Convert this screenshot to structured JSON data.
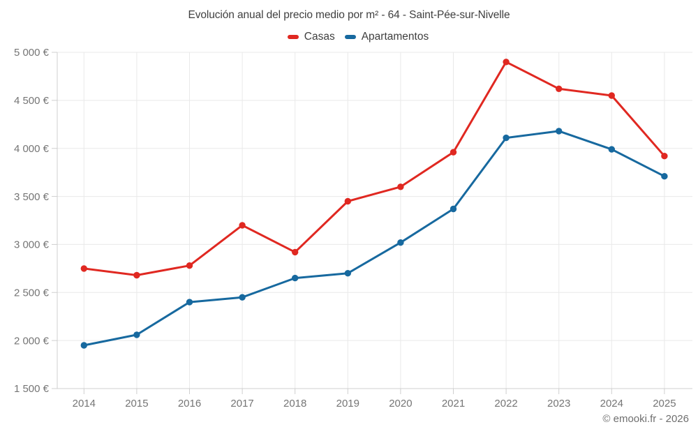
{
  "title": "Evolución anual del precio medio por m² - 64 - Saint-Pée-sur-Nivelle",
  "legend": {
    "items": [
      {
        "label": "Casas",
        "color": "#e02821"
      },
      {
        "label": "Apartamentos",
        "color": "#17699f"
      }
    ]
  },
  "footer": {
    "credit": "© emooki.fr - 2026"
  },
  "colors": {
    "grid": "#e9e9e9",
    "axis": "#cfcfcf",
    "axis_label": "#757575",
    "heading_text": "#3f3f3f",
    "footer_text": "#6f6f6f",
    "casas": "#e02821",
    "apartamentos": "#17699f"
  },
  "chart_data": {
    "type": "line",
    "title": "Evolución anual del precio medio por m² - 64 - Saint-Pée-sur-Nivelle",
    "categories": [
      "2014",
      "2015",
      "2016",
      "2017",
      "2018",
      "2019",
      "2020",
      "2021",
      "2022",
      "2023",
      "2024",
      "2025"
    ],
    "series": [
      {
        "name": "Casas",
        "color": "#e02821",
        "values": [
          2750,
          2680,
          2780,
          3200,
          2920,
          3450,
          3600,
          3960,
          4900,
          4620,
          4550,
          3920
        ]
      },
      {
        "name": "Apartamentos",
        "color": "#17699f",
        "values": [
          1950,
          2060,
          2400,
          2450,
          2650,
          2700,
          3020,
          3370,
          4110,
          4180,
          3990,
          3710
        ]
      }
    ],
    "xlabel": "",
    "ylabel": "",
    "ylim": [
      1500,
      5000
    ],
    "ytick_step": 500,
    "ytick_labels": [
      "5 000 €",
      "4 500 €",
      "4 000 €",
      "3 500 €",
      "3 000 €",
      "2 500 €",
      "2 000 €",
      "1 500 €"
    ],
    "currency": "€",
    "grid": true,
    "legend_position": "top",
    "marker": "circle"
  }
}
